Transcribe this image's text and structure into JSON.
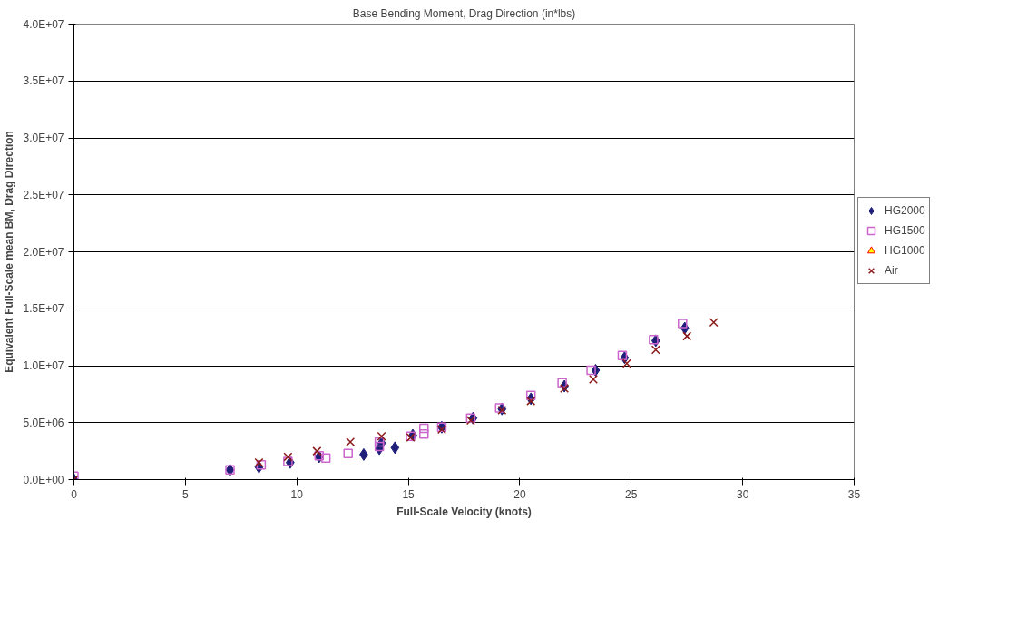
{
  "chart_data": {
    "type": "scatter",
    "title": "Base Bending Moment, Drag Direction (in*lbs)",
    "xlabel": "Full-Scale Velocity (knots)",
    "ylabel": "Equivalent Full-Scale mean BM, Drag Direction",
    "xlim": [
      0,
      35
    ],
    "xticks": [
      0,
      5,
      10,
      15,
      20,
      25,
      30,
      35
    ],
    "ylim": [
      0,
      40000000
    ],
    "yticks": [
      {
        "value": 0,
        "label": "0.0E+00"
      },
      {
        "value": 5000000,
        "label": "5.0E+06"
      },
      {
        "value": 10000000,
        "label": "1.0E+07"
      },
      {
        "value": 15000000,
        "label": "1.5E+07"
      },
      {
        "value": 20000000,
        "label": "2.0E+07"
      },
      {
        "value": 25000000,
        "label": "2.5E+07"
      },
      {
        "value": 30000000,
        "label": "3.0E+07"
      },
      {
        "value": 35000000,
        "label": "3.5E+07"
      },
      {
        "value": 40000000,
        "label": "4.0E+07"
      }
    ],
    "grid": "y",
    "legend": "right",
    "series": [
      {
        "name": "HG2000",
        "color": "#1f1f7a",
        "marker": "diamond",
        "x": [
          0,
          7,
          8.3,
          9.7,
          11,
          13,
          13.7,
          13.8,
          14.4,
          15.2,
          16.5,
          17.9,
          19.2,
          20.5,
          22,
          23.4,
          24.7,
          26.1,
          27.4
        ],
        "values": [
          0,
          850000,
          1100000,
          1500000,
          2000000,
          2200000,
          2700000,
          3200000,
          2800000,
          3900000,
          4600000,
          5400000,
          6200000,
          7100000,
          8200000,
          9600000,
          10700000,
          12200000,
          13300000
        ]
      },
      {
        "name": "HG1500",
        "color": "#cc66cc",
        "marker": "square",
        "x": [
          0,
          7,
          8.4,
          9.6,
          11,
          11.3,
          12.3,
          13.7,
          13.7,
          15.1,
          15.7,
          15.7,
          16.5,
          17.8,
          19.1,
          20.5,
          21.9,
          23.2,
          24.6,
          26,
          27.3
        ],
        "values": [
          300000,
          850000,
          1300000,
          1600000,
          2100000,
          1900000,
          2300000,
          2900000,
          3300000,
          3800000,
          4000000,
          4500000,
          4600000,
          5400000,
          6300000,
          7400000,
          8500000,
          9600000,
          10900000,
          12300000,
          13700000
        ]
      },
      {
        "name": "HG1000",
        "color": "#ffff00",
        "marker": "triangle"
      },
      {
        "name": "Air",
        "color": "#8b1a1a",
        "marker": "cross",
        "x": [
          0,
          8.3,
          9.6,
          10.9,
          12.4,
          13.8,
          15.1,
          16.5,
          17.8,
          19.2,
          20.5,
          22,
          23.3,
          24.8,
          26.1,
          27.5,
          28.7
        ],
        "values": [
          0,
          1500000,
          2000000,
          2500000,
          3300000,
          3800000,
          3700000,
          4400000,
          5200000,
          6100000,
          6900000,
          8000000,
          8800000,
          10200000,
          11400000,
          12600000,
          13800000
        ]
      }
    ]
  }
}
